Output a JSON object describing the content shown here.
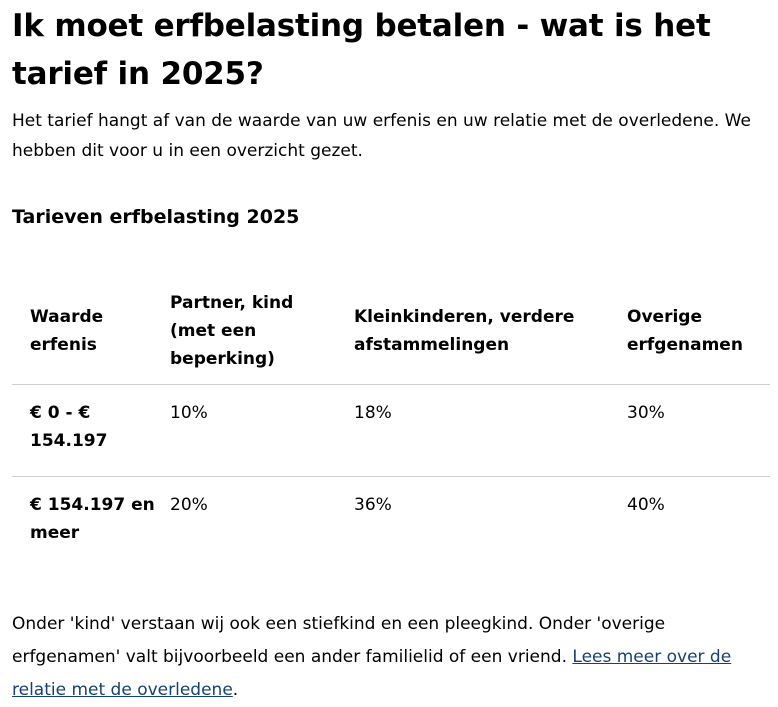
{
  "page": {
    "title": "Ik moet erfbelasting betalen - wat is het tarief in 2025?",
    "intro": "Het tarief hangt af van de waarde van uw erfenis en uw relatie met de overledene. We hebben dit voor u in een overzicht gezet.",
    "section_title": "Tarieven erfbelasting 2025"
  },
  "table": {
    "headers": [
      "Waarde erfenis",
      "Partner, kind (met een beperking)",
      "Kleinkinderen, verdere afstammelingen",
      "Overige erfgenamen"
    ],
    "rows": [
      [
        "€ 0 - € 154.197",
        "10%",
        "18%",
        "30%"
      ],
      [
        "€ 154.197 en meer",
        "20%",
        "36%",
        "40%"
      ]
    ]
  },
  "note": {
    "text": "Onder 'kind' verstaan wij ook een stiefkind en een pleegkind. Onder 'overige erfgenamen' valt bijvoorbeeld een ander familielid of een vriend. ",
    "link_text": "Lees meer over de relatie met de overledene",
    "after_link": ".",
    "link_color": "#154273"
  }
}
